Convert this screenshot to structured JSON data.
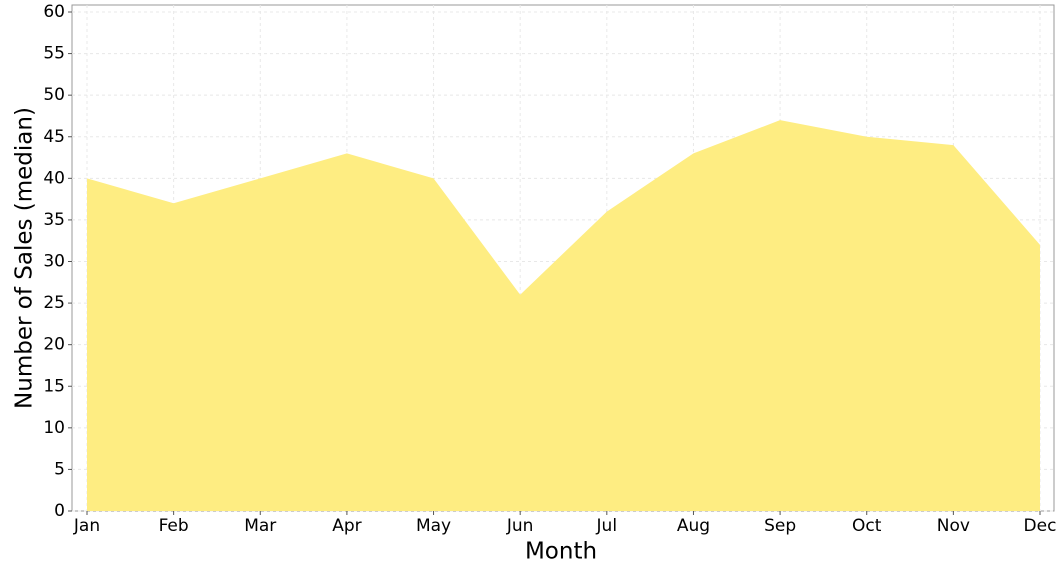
{
  "chart_data": {
    "type": "area",
    "x_label": "Month",
    "y_label": "Number of Sales (median)",
    "categories": [
      "Jan",
      "Feb",
      "Mar",
      "Apr",
      "May",
      "Jun",
      "Jul",
      "Aug",
      "Sep",
      "Oct",
      "Nov",
      "Dec"
    ],
    "values": [
      40,
      37,
      40,
      43,
      40,
      26,
      36,
      43,
      47,
      45,
      44,
      32
    ],
    "color": "#feed82",
    "ylim": [
      0,
      60
    ],
    "yticks": [
      0,
      5,
      10,
      15,
      20,
      25,
      30,
      35,
      40,
      45,
      50,
      55,
      60
    ],
    "grid": true
  }
}
